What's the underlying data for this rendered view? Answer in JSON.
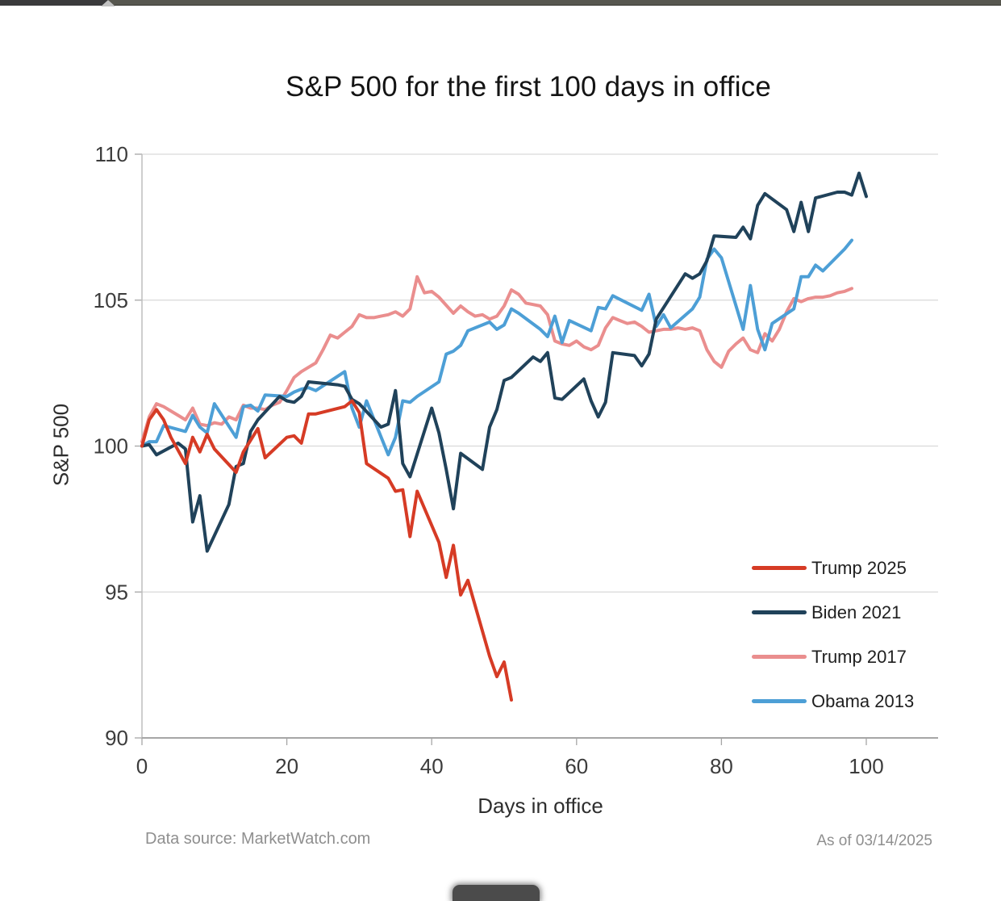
{
  "window": {
    "top_bar": {
      "description": "cropped window chrome strip",
      "caret_icon": "up-caret"
    },
    "dock_fragment": {
      "description": "cropped dark taskbar/dock item at bottom center"
    }
  },
  "chart": {
    "footer": {
      "source": "Data source: MarketWatch.com",
      "as_of": "As of 03/14/2025"
    }
  },
  "chart_data": {
    "type": "line",
    "title": "S&P 500 for the first 100 days in office",
    "xlabel": "Days in office",
    "ylabel": "S&P 500",
    "xlim": [
      0,
      110
    ],
    "ylim": [
      90,
      110
    ],
    "x_ticks": [
      0,
      20,
      40,
      60,
      80,
      100
    ],
    "y_ticks": [
      110,
      105,
      100,
      95,
      90
    ],
    "grid": "horizontal",
    "legend_position": "inside-right-bottom",
    "colors": {
      "grid": "#d9d9d9",
      "axis": "#a6a6a6",
      "tick_label": "#3c3c3c"
    },
    "draw_order": [
      2,
      3,
      1,
      0
    ],
    "series": [
      {
        "name": "Trump 2025",
        "color": "#d63b25",
        "points": [
          [
            0,
            100
          ],
          [
            1,
            100.9
          ],
          [
            2,
            101.25
          ],
          [
            3,
            100.9
          ],
          [
            4,
            100.3
          ],
          [
            6,
            99.4
          ],
          [
            7,
            100.3
          ],
          [
            8,
            99.8
          ],
          [
            9,
            100.4
          ],
          [
            10,
            99.9
          ],
          [
            13,
            99.1
          ],
          [
            14,
            99.8
          ],
          [
            15,
            100.2
          ],
          [
            16,
            100.6
          ],
          [
            17,
            99.6
          ],
          [
            20,
            100.3
          ],
          [
            21,
            100.35
          ],
          [
            22,
            100.1
          ],
          [
            23,
            101.1
          ],
          [
            24,
            101.1
          ],
          [
            28,
            101.35
          ],
          [
            29,
            101.55
          ],
          [
            30,
            101.15
          ],
          [
            31,
            99.4
          ],
          [
            34,
            98.9
          ],
          [
            35,
            98.45
          ],
          [
            36,
            98.5
          ],
          [
            37,
            96.9
          ],
          [
            38,
            98.45
          ],
          [
            41,
            96.7
          ],
          [
            42,
            95.5
          ],
          [
            43,
            96.6
          ],
          [
            44,
            94.9
          ],
          [
            45,
            95.4
          ],
          [
            48,
            92.8
          ],
          [
            49,
            92.1
          ],
          [
            50,
            92.6
          ],
          [
            51,
            91.3
          ]
        ]
      },
      {
        "name": "Biden 2021",
        "color": "#20425a",
        "points": [
          [
            0,
            100
          ],
          [
            1,
            100.05
          ],
          [
            2,
            99.7
          ],
          [
            5,
            100.1
          ],
          [
            6,
            99.9
          ],
          [
            7,
            97.4
          ],
          [
            8,
            98.3
          ],
          [
            9,
            96.4
          ],
          [
            12,
            98
          ],
          [
            13,
            99.3
          ],
          [
            14,
            99.4
          ],
          [
            15,
            100.5
          ],
          [
            16,
            100.9
          ],
          [
            19,
            101.7
          ],
          [
            20,
            101.55
          ],
          [
            21,
            101.5
          ],
          [
            22,
            101.7
          ],
          [
            23,
            102.2
          ],
          [
            27,
            102.1
          ],
          [
            28,
            102.05
          ],
          [
            29,
            101.6
          ],
          [
            30,
            101.45
          ],
          [
            33,
            100.65
          ],
          [
            34,
            100.75
          ],
          [
            35,
            101.9
          ],
          [
            36,
            99.4
          ],
          [
            37,
            98.95
          ],
          [
            40,
            101.3
          ],
          [
            41,
            100.45
          ],
          [
            42,
            99.2
          ],
          [
            43,
            97.85
          ],
          [
            44,
            99.75
          ],
          [
            47,
            99.2
          ],
          [
            48,
            100.65
          ],
          [
            49,
            101.25
          ],
          [
            50,
            102.25
          ],
          [
            51,
            102.35
          ],
          [
            54,
            103.05
          ],
          [
            55,
            102.9
          ],
          [
            56,
            103.2
          ],
          [
            57,
            101.65
          ],
          [
            58,
            101.6
          ],
          [
            61,
            102.3
          ],
          [
            62,
            101.55
          ],
          [
            63,
            101
          ],
          [
            64,
            101.5
          ],
          [
            65,
            103.2
          ],
          [
            68,
            103.1
          ],
          [
            69,
            102.75
          ],
          [
            70,
            103.15
          ],
          [
            71,
            104.35
          ],
          [
            75,
            105.9
          ],
          [
            76,
            105.75
          ],
          [
            77,
            105.9
          ],
          [
            78,
            106.35
          ],
          [
            79,
            107.2
          ],
          [
            82,
            107.15
          ],
          [
            83,
            107.5
          ],
          [
            84,
            107.1
          ],
          [
            85,
            108.25
          ],
          [
            86,
            108.65
          ],
          [
            89,
            108.1
          ],
          [
            90,
            107.35
          ],
          [
            91,
            108.35
          ],
          [
            92,
            107.35
          ],
          [
            93,
            108.5
          ],
          [
            96,
            108.7
          ],
          [
            97,
            108.7
          ],
          [
            98,
            108.6
          ],
          [
            99,
            109.35
          ],
          [
            100,
            108.55
          ]
        ]
      },
      {
        "name": "Trump 2017",
        "color": "#ea8e8e",
        "points": [
          [
            0,
            100.15
          ],
          [
            1,
            101
          ],
          [
            2,
            101.45
          ],
          [
            3,
            101.35
          ],
          [
            4,
            101.2
          ],
          [
            5,
            101.05
          ],
          [
            6,
            100.9
          ],
          [
            7,
            101.3
          ],
          [
            8,
            100.75
          ],
          [
            9,
            100.7
          ],
          [
            10,
            100.8
          ],
          [
            11,
            100.75
          ],
          [
            12,
            101
          ],
          [
            13,
            100.9
          ],
          [
            14,
            101.4
          ],
          [
            15,
            101.3
          ],
          [
            16,
            101.3
          ],
          [
            17,
            101.25
          ],
          [
            18,
            101.4
          ],
          [
            19,
            101.5
          ],
          [
            20,
            101.9
          ],
          [
            21,
            102.35
          ],
          [
            22,
            102.55
          ],
          [
            23,
            102.7
          ],
          [
            24,
            102.85
          ],
          [
            25,
            103.3
          ],
          [
            26,
            103.8
          ],
          [
            27,
            103.7
          ],
          [
            28,
            103.9
          ],
          [
            29,
            104.1
          ],
          [
            30,
            104.5
          ],
          [
            31,
            104.4
          ],
          [
            32,
            104.4
          ],
          [
            33,
            104.45
          ],
          [
            34,
            104.5
          ],
          [
            35,
            104.6
          ],
          [
            36,
            104.45
          ],
          [
            37,
            104.7
          ],
          [
            38,
            105.8
          ],
          [
            39,
            105.25
          ],
          [
            40,
            105.3
          ],
          [
            41,
            105.1
          ],
          [
            43,
            104.55
          ],
          [
            44,
            104.8
          ],
          [
            45,
            104.6
          ],
          [
            46,
            104.45
          ],
          [
            47,
            104.5
          ],
          [
            48,
            104.35
          ],
          [
            49,
            104.45
          ],
          [
            50,
            104.8
          ],
          [
            51,
            105.35
          ],
          [
            52,
            105.2
          ],
          [
            53,
            104.9
          ],
          [
            54,
            104.85
          ],
          [
            55,
            104.8
          ],
          [
            56,
            104.5
          ],
          [
            57,
            103.6
          ],
          [
            58,
            103.5
          ],
          [
            59,
            103.45
          ],
          [
            60,
            103.6
          ],
          [
            61,
            103.4
          ],
          [
            62,
            103.3
          ],
          [
            63,
            103.45
          ],
          [
            64,
            104.05
          ],
          [
            65,
            104.4
          ],
          [
            66,
            104.3
          ],
          [
            67,
            104.2
          ],
          [
            68,
            104.25
          ],
          [
            69,
            104.1
          ],
          [
            70,
            103.9
          ],
          [
            71,
            103.95
          ],
          [
            72,
            104
          ],
          [
            73,
            104
          ],
          [
            74,
            104.05
          ],
          [
            75,
            104
          ],
          [
            76,
            104.05
          ],
          [
            77,
            103.95
          ],
          [
            78,
            103.3
          ],
          [
            79,
            102.9
          ],
          [
            80,
            102.7
          ],
          [
            81,
            103.25
          ],
          [
            82,
            103.5
          ],
          [
            83,
            103.7
          ],
          [
            84,
            103.3
          ],
          [
            85,
            103.2
          ],
          [
            86,
            103.85
          ],
          [
            87,
            103.6
          ],
          [
            88,
            104
          ],
          [
            89,
            104.6
          ],
          [
            90,
            105.05
          ],
          [
            91,
            104.95
          ],
          [
            92,
            105.05
          ],
          [
            93,
            105.1
          ],
          [
            94,
            105.1
          ],
          [
            95,
            105.15
          ],
          [
            96,
            105.25
          ],
          [
            97,
            105.3
          ],
          [
            98,
            105.4
          ]
        ]
      },
      {
        "name": "Obama 2013",
        "color": "#4d9fd6",
        "points": [
          [
            0,
            100
          ],
          [
            1,
            100.15
          ],
          [
            2,
            100.15
          ],
          [
            3,
            100.7
          ],
          [
            6,
            100.5
          ],
          [
            7,
            101.05
          ],
          [
            8,
            100.65
          ],
          [
            9,
            100.45
          ],
          [
            10,
            101.45
          ],
          [
            13,
            100.3
          ],
          [
            14,
            101.35
          ],
          [
            15,
            101.4
          ],
          [
            16,
            101.2
          ],
          [
            17,
            101.75
          ],
          [
            20,
            101.7
          ],
          [
            21,
            101.85
          ],
          [
            22,
            101.95
          ],
          [
            23,
            102
          ],
          [
            24,
            101.9
          ],
          [
            28,
            102.55
          ],
          [
            29,
            101.3
          ],
          [
            30,
            100.65
          ],
          [
            31,
            101.55
          ],
          [
            34,
            99.7
          ],
          [
            35,
            100.3
          ],
          [
            36,
            101.55
          ],
          [
            37,
            101.5
          ],
          [
            38,
            101.7
          ],
          [
            41,
            102.2
          ],
          [
            42,
            103.15
          ],
          [
            43,
            103.25
          ],
          [
            44,
            103.45
          ],
          [
            45,
            103.95
          ],
          [
            48,
            104.25
          ],
          [
            49,
            104
          ],
          [
            50,
            104.15
          ],
          [
            51,
            104.7
          ],
          [
            52,
            104.55
          ],
          [
            55,
            104
          ],
          [
            56,
            103.75
          ],
          [
            57,
            104.45
          ],
          [
            58,
            103.55
          ],
          [
            59,
            104.3
          ],
          [
            62,
            103.95
          ],
          [
            63,
            104.75
          ],
          [
            64,
            104.7
          ],
          [
            65,
            105.15
          ],
          [
            69,
            104.65
          ],
          [
            70,
            105.2
          ],
          [
            71,
            104.1
          ],
          [
            72,
            104.5
          ],
          [
            73,
            104.05
          ],
          [
            76,
            104.7
          ],
          [
            77,
            105.1
          ],
          [
            78,
            106.4
          ],
          [
            79,
            106.75
          ],
          [
            80,
            106.45
          ],
          [
            83,
            104
          ],
          [
            84,
            105.5
          ],
          [
            85,
            104
          ],
          [
            86,
            103.3
          ],
          [
            87,
            104.2
          ],
          [
            90,
            104.7
          ],
          [
            91,
            105.8
          ],
          [
            92,
            105.8
          ],
          [
            93,
            106.2
          ],
          [
            94,
            106
          ],
          [
            97,
            106.75
          ],
          [
            98,
            107.05
          ]
        ]
      }
    ]
  }
}
